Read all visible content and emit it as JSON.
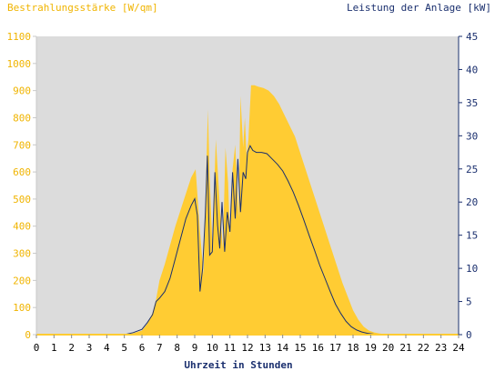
{
  "chart_data": {
    "type": "area",
    "xlabel": "Uhrzeit in Stunden",
    "ylabel_left": "Bestrahlungsstärke [W/qm]",
    "ylabel_right": "Leistung der Anlage [kW]",
    "xlim": [
      0,
      24
    ],
    "ylim_left": [
      0,
      1100
    ],
    "ylim_right": [
      0,
      45
    ],
    "x_ticks": [
      "0",
      "1",
      "2",
      "3",
      "4",
      "5",
      "6",
      "7",
      "8",
      "9",
      "10",
      "11",
      "12",
      "13",
      "14",
      "15",
      "16",
      "17",
      "18",
      "19",
      "20",
      "21",
      "22",
      "23",
      "24"
    ],
    "y_left_ticks": [
      "0",
      "100",
      "200",
      "300",
      "400",
      "500",
      "600",
      "700",
      "800",
      "900",
      "1000",
      "1100"
    ],
    "y_right_ticks": [
      "0",
      "5",
      "10",
      "15",
      "20",
      "25",
      "30",
      "35",
      "40",
      "45"
    ],
    "colors": {
      "plot_bg": "#dcdcdc",
      "irradiance_fill": "#ffcc33",
      "power_line": "#1a2f6e",
      "left_axis_text": "#f0b400",
      "right_axis_text": "#1a2f6e",
      "axis": "#1a2f6e"
    },
    "series": [
      {
        "name": "Bestrahlungsstärke [W/qm]",
        "axis": "left",
        "x": [
          5.0,
          5.5,
          6.0,
          6.3,
          6.6,
          6.8,
          7.0,
          7.3,
          7.6,
          7.9,
          8.2,
          8.5,
          8.8,
          9.05,
          9.3,
          9.5,
          9.65,
          9.75,
          9.85,
          10.0,
          10.2,
          10.35,
          10.45,
          10.6,
          10.75,
          10.9,
          11.0,
          11.15,
          11.3,
          11.5,
          11.6,
          11.75,
          11.85,
          11.95,
          12.05,
          12.2,
          12.4,
          12.6,
          12.9,
          13.2,
          13.5,
          13.8,
          14.1,
          14.4,
          14.7,
          15.0,
          15.3,
          15.6,
          15.9,
          16.2,
          16.5,
          16.8,
          17.1,
          17.4,
          17.7,
          18.0,
          18.3,
          18.6,
          18.9,
          19.2,
          19.5,
          19.8,
          20.0,
          20.2,
          20.5
        ],
        "values": [
          0,
          5,
          15,
          40,
          80,
          130,
          200,
          260,
          330,
          400,
          460,
          520,
          580,
          610,
          380,
          220,
          600,
          830,
          580,
          340,
          720,
          560,
          450,
          320,
          690,
          560,
          360,
          610,
          700,
          430,
          880,
          690,
          800,
          660,
          720,
          920,
          920,
          915,
          910,
          900,
          880,
          850,
          810,
          770,
          730,
          670,
          610,
          550,
          490,
          430,
          370,
          310,
          250,
          190,
          140,
          90,
          55,
          30,
          15,
          8,
          4,
          2,
          0,
          0,
          0
        ],
        "range_note": "",
        "fill": true
      },
      {
        "name": "Leistung der Anlage [kW]",
        "axis": "right",
        "x": [
          5.0,
          5.5,
          6.0,
          6.3,
          6.6,
          6.8,
          7.0,
          7.3,
          7.6,
          7.9,
          8.2,
          8.5,
          8.8,
          9.0,
          9.15,
          9.3,
          9.45,
          9.6,
          9.72,
          9.85,
          10.0,
          10.15,
          10.3,
          10.42,
          10.55,
          10.7,
          10.85,
          11.0,
          11.15,
          11.3,
          11.45,
          11.6,
          11.75,
          11.9,
          12.0,
          12.15,
          12.3,
          12.5,
          12.8,
          13.1,
          13.4,
          13.7,
          14.0,
          14.3,
          14.6,
          14.9,
          15.2,
          15.5,
          15.8,
          16.1,
          16.4,
          16.7,
          17.0,
          17.3,
          17.6,
          17.9,
          18.2,
          18.5,
          18.8,
          19.1,
          19.4,
          19.7,
          20.0,
          20.3
        ],
        "values": [
          0,
          0.3,
          0.8,
          1.8,
          3.0,
          5.0,
          5.5,
          6.5,
          8.5,
          11.5,
          14.5,
          17.5,
          19.5,
          20.5,
          18.0,
          6.5,
          10.0,
          18.0,
          27.0,
          12.0,
          12.5,
          24.5,
          16.5,
          13.0,
          20.0,
          12.5,
          18.5,
          15.5,
          24.5,
          17.5,
          26.5,
          18.5,
          24.5,
          23.5,
          27.5,
          28.5,
          27.8,
          27.5,
          27.5,
          27.3,
          26.5,
          25.7,
          24.7,
          23.2,
          21.5,
          19.5,
          17.3,
          15.0,
          12.8,
          10.5,
          8.5,
          6.5,
          4.6,
          3.2,
          2.0,
          1.2,
          0.7,
          0.4,
          0.2,
          0.1,
          0,
          0,
          0,
          0
        ],
        "fill": false
      }
    ]
  }
}
